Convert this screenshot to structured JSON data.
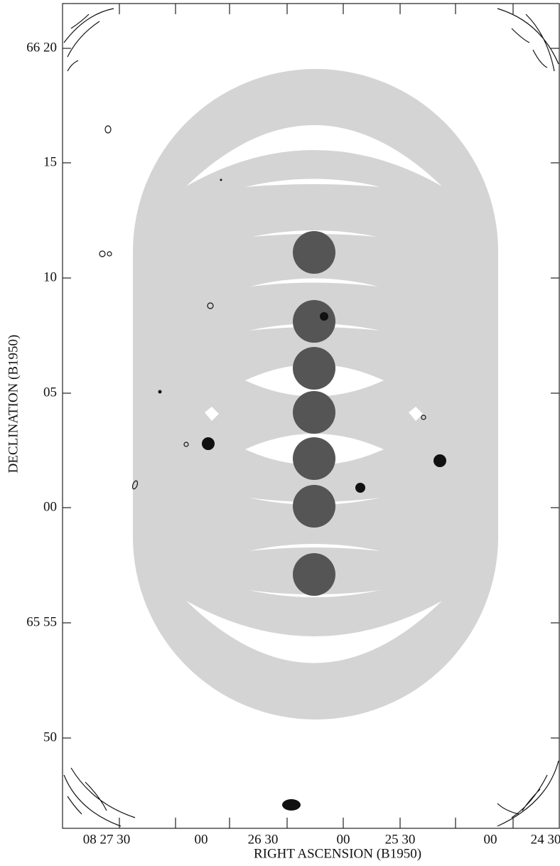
{
  "figure": {
    "x_axis_label": "RIGHT ASCENSION (B1950)",
    "y_axis_label": "DECLINATION (B1950)",
    "x_tick_labels": [
      "08 27 30",
      "00",
      "26 30",
      "00",
      "25 30",
      "00",
      "24 30"
    ],
    "y_tick_labels": [
      "66 20",
      "15",
      "10",
      "05",
      "00",
      "65 55",
      "50"
    ]
  }
}
